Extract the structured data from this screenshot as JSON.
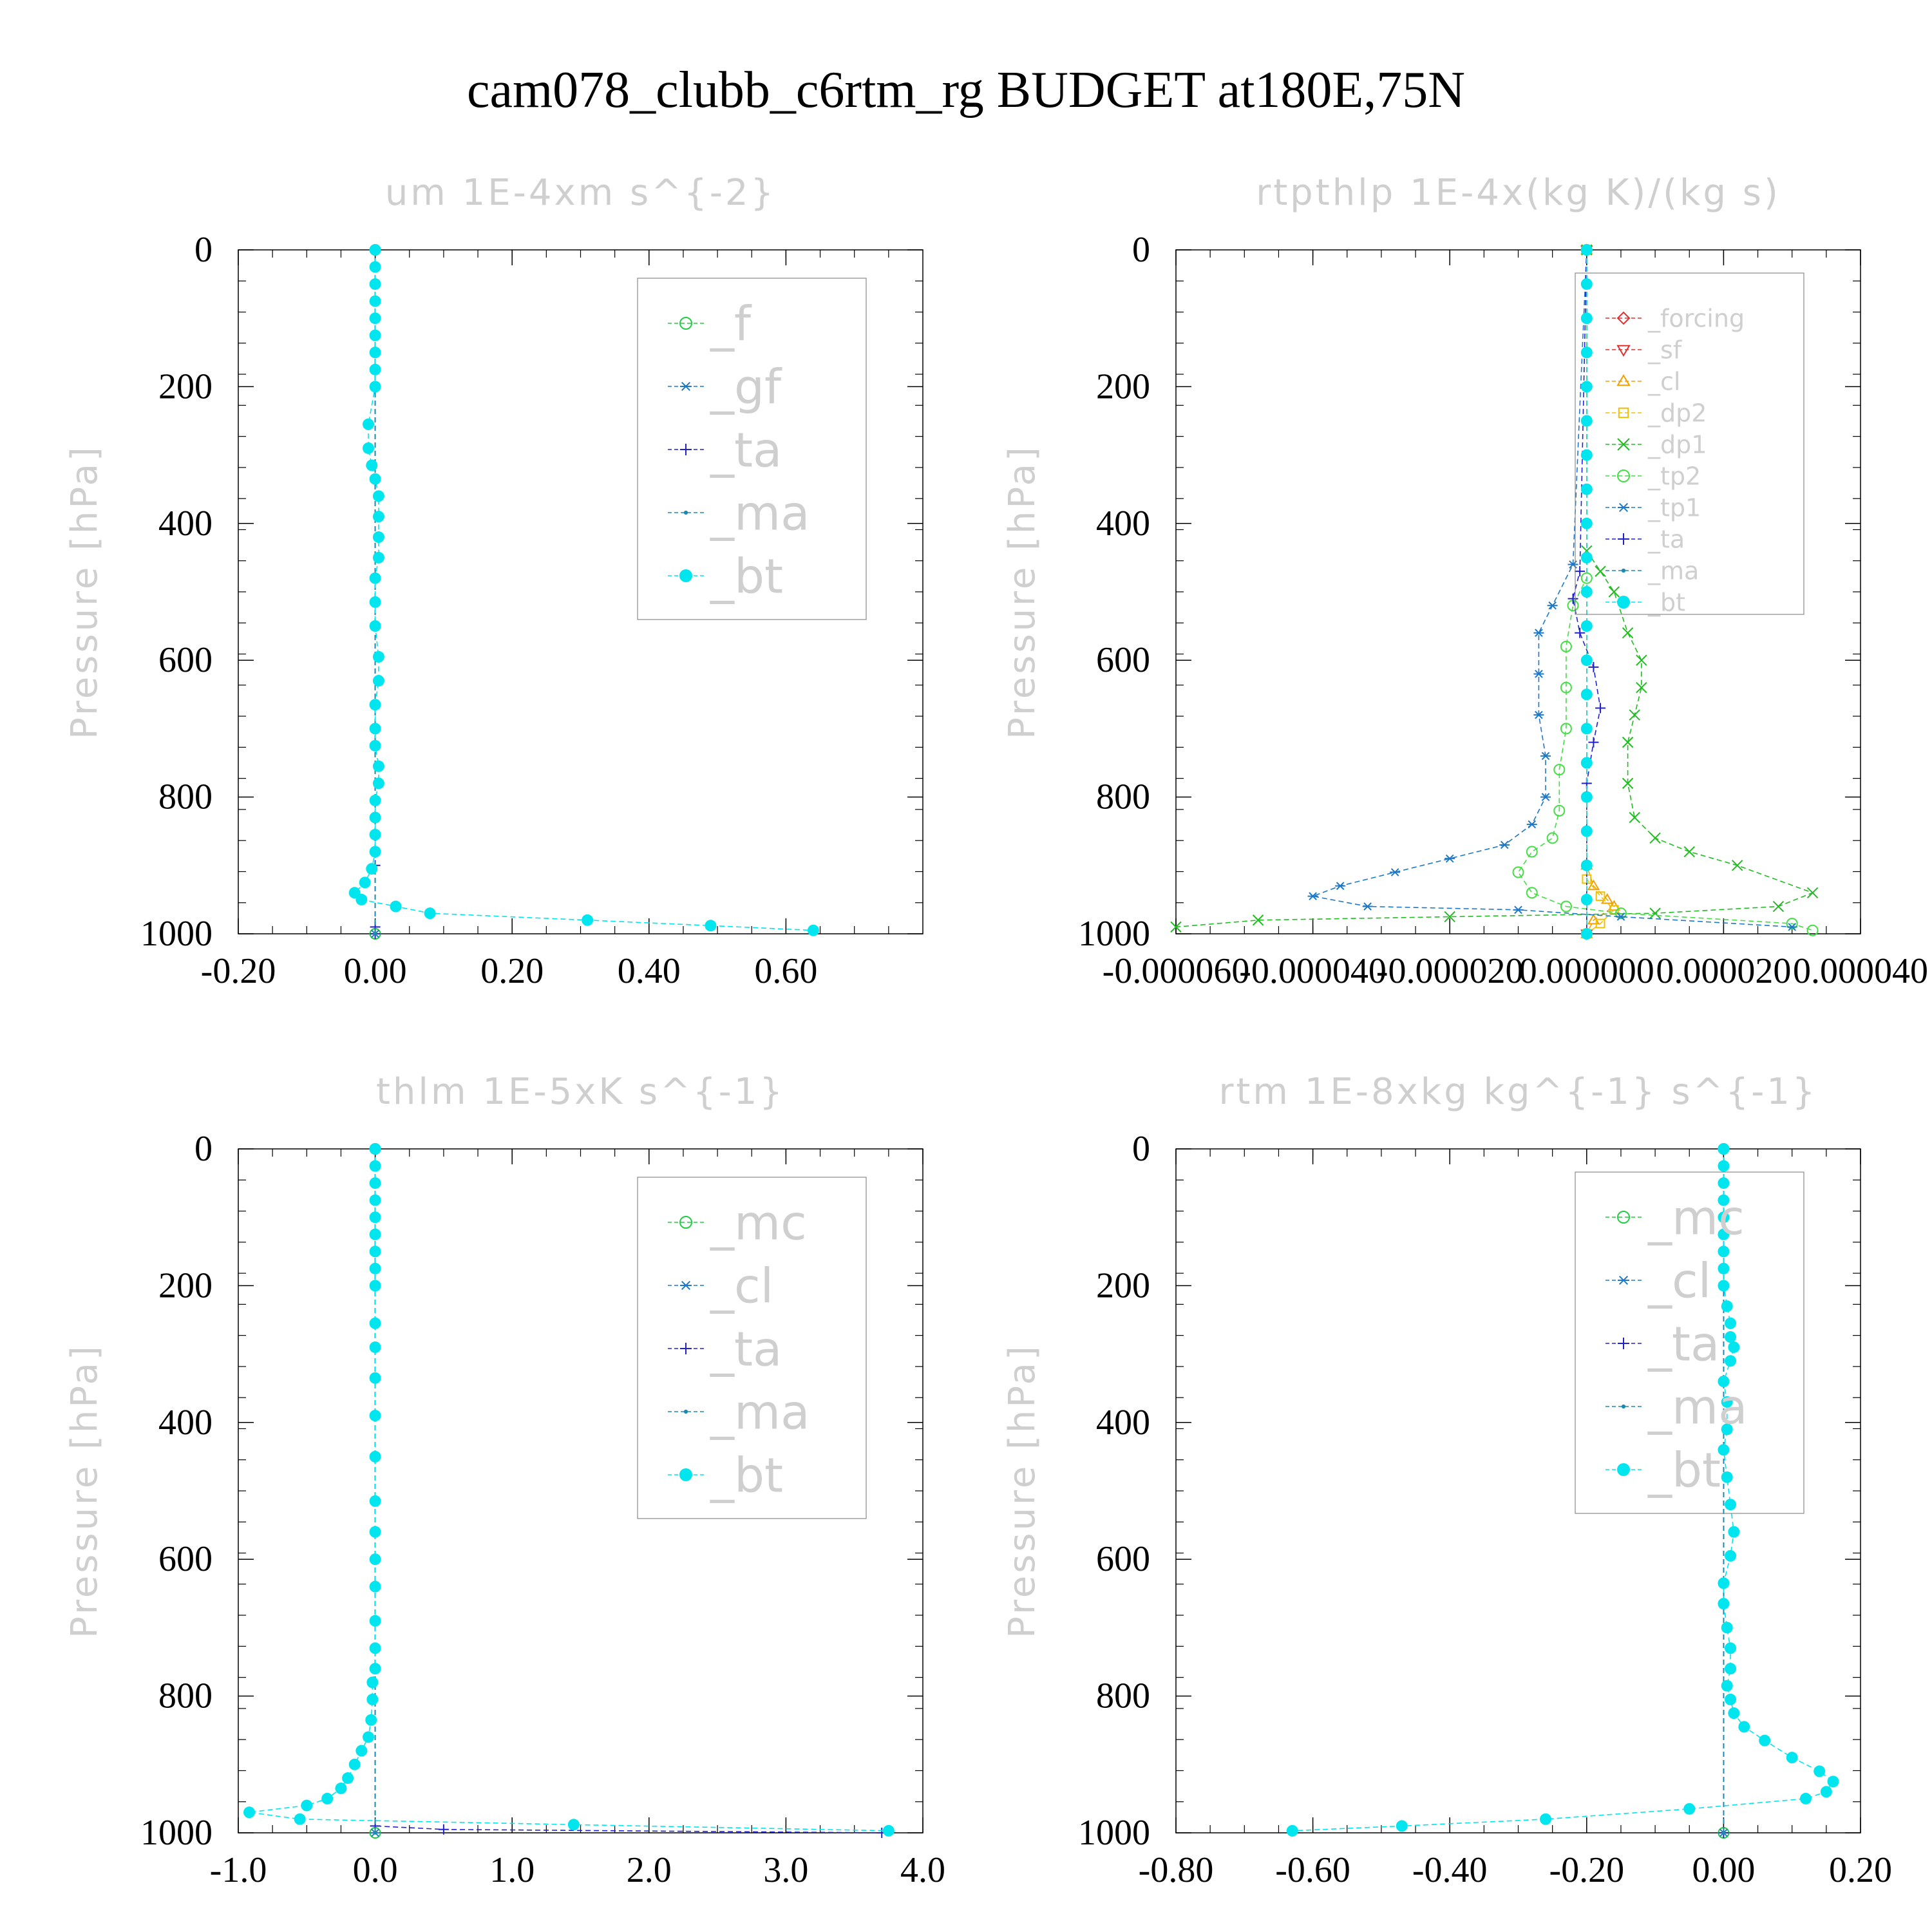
{
  "page_title": "cam078_clubb_c6rtm_rg  BUDGET at180E,75N",
  "colors": {
    "f": "#22cc44",
    "gf": "#1e78c8",
    "ta": "#2222cc",
    "ma": "#1e88b0",
    "bt": "#00e5ee",
    "forcing": "#e03030",
    "sf": "#e03030",
    "cl_orange": "#f0a000",
    "dp2": "#f0c000",
    "dp1": "#22bb22",
    "tp2": "#44dd44",
    "tp1": "#1e78c8",
    "mc": "#22cc44",
    "cl": "#1e78c8"
  },
  "chart_data": [
    {
      "type": "line",
      "title": "um  1E-4xm s^{-2}",
      "ylabel": "Pressure [hPa]",
      "xlim": [
        -0.2,
        0.8
      ],
      "ylim": [
        1000,
        0
      ],
      "xticks": [
        "-0.20",
        "0.00",
        "0.20",
        "0.40",
        "0.60"
      ],
      "xtick_values": [
        -0.2,
        0.0,
        0.2,
        0.4,
        0.6
      ],
      "yticks": [
        "0",
        "200",
        "400",
        "600",
        "800",
        "1000"
      ],
      "legend": {
        "position": "top-right",
        "entries": [
          "_f",
          "_gf",
          "_ta",
          "_ma",
          "_bt"
        ]
      },
      "series": [
        {
          "name": "_f",
          "color_key": "f",
          "marker": "circle-open",
          "x": [
            0,
            0
          ],
          "y": [
            0,
            1000
          ]
        },
        {
          "name": "_gf",
          "color_key": "gf",
          "marker": "star",
          "x": [
            0,
            0
          ],
          "y": [
            0,
            1000
          ]
        },
        {
          "name": "_ta",
          "color_key": "ta",
          "marker": "plus",
          "x": [
            0,
            0.0,
            0.0,
            0.0
          ],
          "y": [
            0,
            900,
            990,
            1000
          ]
        },
        {
          "name": "_ma",
          "color_key": "ma",
          "marker": "dot",
          "x": [
            0,
            0
          ],
          "y": [
            0,
            1000
          ]
        },
        {
          "name": "_bt",
          "color_key": "bt",
          "marker": "filled",
          "x": [
            0.0,
            0.0,
            0.0,
            0.0,
            0.0,
            0.0,
            0.0,
            0.0,
            0.0,
            -0.01,
            -0.01,
            -0.005,
            0.0,
            0.005,
            0.005,
            0.005,
            0.005,
            0.0,
            0.0,
            0.0,
            0.005,
            0.005,
            0.0,
            0.0,
            0.0,
            0.005,
            0.005,
            0.0,
            0.0,
            0.0,
            0.0,
            -0.005,
            -0.015,
            -0.03,
            -0.02,
            0.03,
            0.08,
            0.31,
            0.49,
            0.64
          ],
          "y": [
            0,
            25,
            50,
            75,
            100,
            125,
            150,
            175,
            200,
            255,
            290,
            315,
            335,
            360,
            390,
            420,
            450,
            480,
            515,
            550,
            595,
            630,
            665,
            700,
            725,
            755,
            780,
            805,
            830,
            855,
            880,
            905,
            925,
            940,
            950,
            960,
            970,
            980,
            988,
            995
          ]
        }
      ]
    },
    {
      "type": "line",
      "title": "rtpthlp  1E-4x(kg K)/(kg s)",
      "ylabel": "Pressure [hPa]",
      "xlim": [
        -6e-05,
        4e-05
      ],
      "ylim": [
        1000,
        0
      ],
      "xticks": [
        "-0.000060",
        "-0.000040",
        "-0.000020",
        "0.000000",
        "0.000020",
        "0.000040"
      ],
      "xtick_values": [
        -6e-05,
        -4e-05,
        -2e-05,
        0.0,
        2e-05,
        4e-05
      ],
      "yticks": [
        "0",
        "200",
        "400",
        "600",
        "800",
        "1000"
      ],
      "legend": {
        "position": "top-right",
        "entries": [
          "_forcing",
          "_sf",
          "_cl",
          "_dp2",
          "_dp1",
          "_tp2",
          "_tp1",
          "_ta",
          "_ma",
          "_bt"
        ]
      },
      "series": [
        {
          "name": "_forcing",
          "color_key": "forcing",
          "marker": "diamond",
          "x": [
            0,
            0
          ],
          "y": [
            0,
            1000
          ]
        },
        {
          "name": "_sf",
          "color_key": "sf",
          "marker": "tri-down",
          "x": [
            0,
            0
          ],
          "y": [
            0,
            1000
          ]
        },
        {
          "name": "_cl",
          "color_key": "cl_orange",
          "marker": "tri-up",
          "x": [
            0,
            0,
            1e-06,
            3e-06,
            4e-06,
            1e-06,
            0
          ],
          "y": [
            0,
            900,
            930,
            950,
            960,
            980,
            1000
          ]
        },
        {
          "name": "_dp2",
          "color_key": "dp2",
          "marker": "square",
          "x": [
            0,
            0,
            2e-06,
            4e-06,
            2e-06,
            0
          ],
          "y": [
            0,
            920,
            945,
            965,
            985,
            1000
          ]
        },
        {
          "name": "_dp1",
          "color_key": "dp1",
          "marker": "x",
          "x": [
            0,
            0.0,
            2e-06,
            4e-06,
            6e-06,
            8e-06,
            8e-06,
            7e-06,
            6e-06,
            6e-06,
            7e-06,
            1e-05,
            1.5e-05,
            2.2e-05,
            3.3e-05,
            2.8e-05,
            1e-05,
            -2e-05,
            -4.8e-05,
            -6.5e-05
          ],
          "y": [
            0,
            440,
            470,
            500,
            560,
            600,
            640,
            680,
            720,
            780,
            830,
            860,
            880,
            900,
            940,
            960,
            970,
            975,
            980,
            990
          ]
        },
        {
          "name": "_tp2",
          "color_key": "tp2",
          "marker": "circle-open",
          "x": [
            0,
            0,
            -2e-06,
            -3e-06,
            -3e-06,
            -3e-06,
            -4e-06,
            -4e-06,
            -5e-06,
            -8e-06,
            -1e-05,
            -8e-06,
            -3e-06,
            5e-06,
            3e-05,
            3.3e-05
          ],
          "y": [
            0,
            480,
            520,
            580,
            640,
            700,
            760,
            820,
            860,
            880,
            910,
            940,
            960,
            970,
            985,
            995
          ]
        },
        {
          "name": "_tp1",
          "color_key": "tp1",
          "marker": "star",
          "x": [
            0,
            -2e-06,
            -5e-06,
            -7e-06,
            -7e-06,
            -7e-06,
            -6e-06,
            -6e-06,
            -8e-06,
            -1.2e-05,
            -2e-05,
            -2.8e-05,
            -3.6e-05,
            -4e-05,
            -3.2e-05,
            -1e-05,
            5e-06,
            3e-05
          ],
          "y": [
            0,
            460,
            520,
            560,
            620,
            680,
            740,
            800,
            840,
            870,
            890,
            910,
            930,
            945,
            960,
            965,
            975,
            990
          ]
        },
        {
          "name": "_ta",
          "color_key": "ta",
          "marker": "plus",
          "x": [
            0,
            -1e-06,
            -2e-06,
            -1e-06,
            1e-06,
            2e-06,
            1e-06,
            0,
            0
          ],
          "y": [
            0,
            470,
            510,
            560,
            610,
            670,
            720,
            780,
            1000
          ]
        },
        {
          "name": "_ma",
          "color_key": "ma",
          "marker": "dot",
          "x": [
            0,
            0
          ],
          "y": [
            0,
            1000
          ]
        },
        {
          "name": "_bt",
          "color_key": "bt",
          "marker": "filled",
          "x": [
            0,
            0,
            0,
            0,
            0,
            0,
            0,
            0,
            0,
            0,
            0,
            0,
            0,
            0,
            0,
            0,
            0,
            0,
            0,
            0,
            0
          ],
          "y": [
            0,
            50,
            100,
            150,
            200,
            250,
            300,
            350,
            400,
            450,
            500,
            550,
            600,
            650,
            700,
            750,
            800,
            850,
            900,
            950,
            1000
          ]
        }
      ]
    },
    {
      "type": "line",
      "title": "thlm  1E-5xK s^{-1}",
      "ylabel": "Pressure [hPa]",
      "xlim": [
        -1.0,
        4.0
      ],
      "ylim": [
        1000,
        0
      ],
      "xticks": [
        "-1.0",
        "0.0",
        "1.0",
        "2.0",
        "3.0",
        "4.0"
      ],
      "xtick_values": [
        -1.0,
        0.0,
        1.0,
        2.0,
        3.0,
        4.0
      ],
      "yticks": [
        "0",
        "200",
        "400",
        "600",
        "800",
        "1000"
      ],
      "legend": {
        "position": "top-right",
        "entries": [
          "_mc",
          "_cl",
          "_ta",
          "_ma",
          "_bt"
        ]
      },
      "series": [
        {
          "name": "_mc",
          "color_key": "mc",
          "marker": "circle-open",
          "x": [
            0,
            0
          ],
          "y": [
            0,
            1000
          ]
        },
        {
          "name": "_cl",
          "color_key": "cl",
          "marker": "star",
          "x": [
            0,
            0
          ],
          "y": [
            0,
            1000
          ]
        },
        {
          "name": "_ta",
          "color_key": "ta",
          "marker": "plus",
          "x": [
            0,
            0,
            0.5,
            3.7
          ],
          "y": [
            0,
            990,
            995,
            1000
          ]
        },
        {
          "name": "_ma",
          "color_key": "ma",
          "marker": "dot",
          "x": [
            0,
            0
          ],
          "y": [
            0,
            1000
          ]
        },
        {
          "name": "_bt",
          "color_key": "bt",
          "marker": "filled",
          "x": [
            0.0,
            0.0,
            0.0,
            0.0,
            0.0,
            0.0,
            0.0,
            0.0,
            0.0,
            0.0,
            0.0,
            0.0,
            0.0,
            0.0,
            0.0,
            0.0,
            0.0,
            0.0,
            0.0,
            0.0,
            0.0,
            -0.02,
            -0.02,
            -0.03,
            -0.05,
            -0.1,
            -0.15,
            -0.2,
            -0.25,
            -0.35,
            -0.5,
            -0.92,
            -0.55,
            1.45,
            3.75
          ],
          "y": [
            0,
            25,
            50,
            75,
            100,
            125,
            150,
            175,
            200,
            255,
            290,
            335,
            390,
            450,
            515,
            560,
            600,
            640,
            690,
            730,
            760,
            780,
            805,
            835,
            860,
            880,
            900,
            920,
            935,
            950,
            960,
            970,
            980,
            988,
            997
          ]
        }
      ]
    },
    {
      "type": "line",
      "title": "rtm  1E-8xkg kg^{-1} s^{-1}",
      "ylabel": "Pressure [hPa]",
      "xlim": [
        -0.8,
        0.2
      ],
      "ylim": [
        1000,
        0
      ],
      "xticks": [
        "-0.80",
        "-0.60",
        "-0.40",
        "-0.20",
        "0.00",
        "0.20"
      ],
      "xtick_values": [
        -0.8,
        -0.6,
        -0.4,
        -0.2,
        0.0,
        0.2
      ],
      "yticks": [
        "0",
        "200",
        "400",
        "600",
        "800",
        "1000"
      ],
      "legend": {
        "position": "top-right",
        "entries": [
          "_mc",
          "_cl",
          "_ta",
          "_ma",
          "_bt"
        ]
      },
      "series": [
        {
          "name": "_mc",
          "color_key": "mc",
          "marker": "circle-open",
          "x": [
            0,
            0
          ],
          "y": [
            0,
            1000
          ]
        },
        {
          "name": "_cl",
          "color_key": "cl",
          "marker": "star",
          "x": [
            0,
            0
          ],
          "y": [
            0,
            1000
          ]
        },
        {
          "name": "_ta",
          "color_key": "ta",
          "marker": "plus",
          "x": [
            0,
            0
          ],
          "y": [
            0,
            1000
          ]
        },
        {
          "name": "_ma",
          "color_key": "ma",
          "marker": "dot",
          "x": [
            0,
            0
          ],
          "y": [
            0,
            1000
          ]
        },
        {
          "name": "_bt",
          "color_key": "bt",
          "marker": "filled",
          "x": [
            0.0,
            0.0,
            0.0,
            0.0,
            0.0,
            0.0,
            0.0,
            0.0,
            0.0,
            0.005,
            0.01,
            0.01,
            0.015,
            0.01,
            0.0,
            0.005,
            0.005,
            0.0,
            0.005,
            0.01,
            0.015,
            0.01,
            0.0,
            0.0,
            0.005,
            0.01,
            0.01,
            0.005,
            0.01,
            0.015,
            0.03,
            0.06,
            0.1,
            0.14,
            0.16,
            0.15,
            0.12,
            -0.05,
            -0.26,
            -0.47,
            -0.63
          ],
          "y": [
            0,
            25,
            50,
            75,
            100,
            125,
            150,
            175,
            200,
            230,
            255,
            275,
            290,
            310,
            340,
            370,
            410,
            440,
            480,
            520,
            560,
            595,
            635,
            665,
            700,
            730,
            760,
            785,
            805,
            825,
            845,
            865,
            890,
            910,
            925,
            940,
            950,
            965,
            980,
            990,
            997
          ]
        }
      ]
    }
  ]
}
